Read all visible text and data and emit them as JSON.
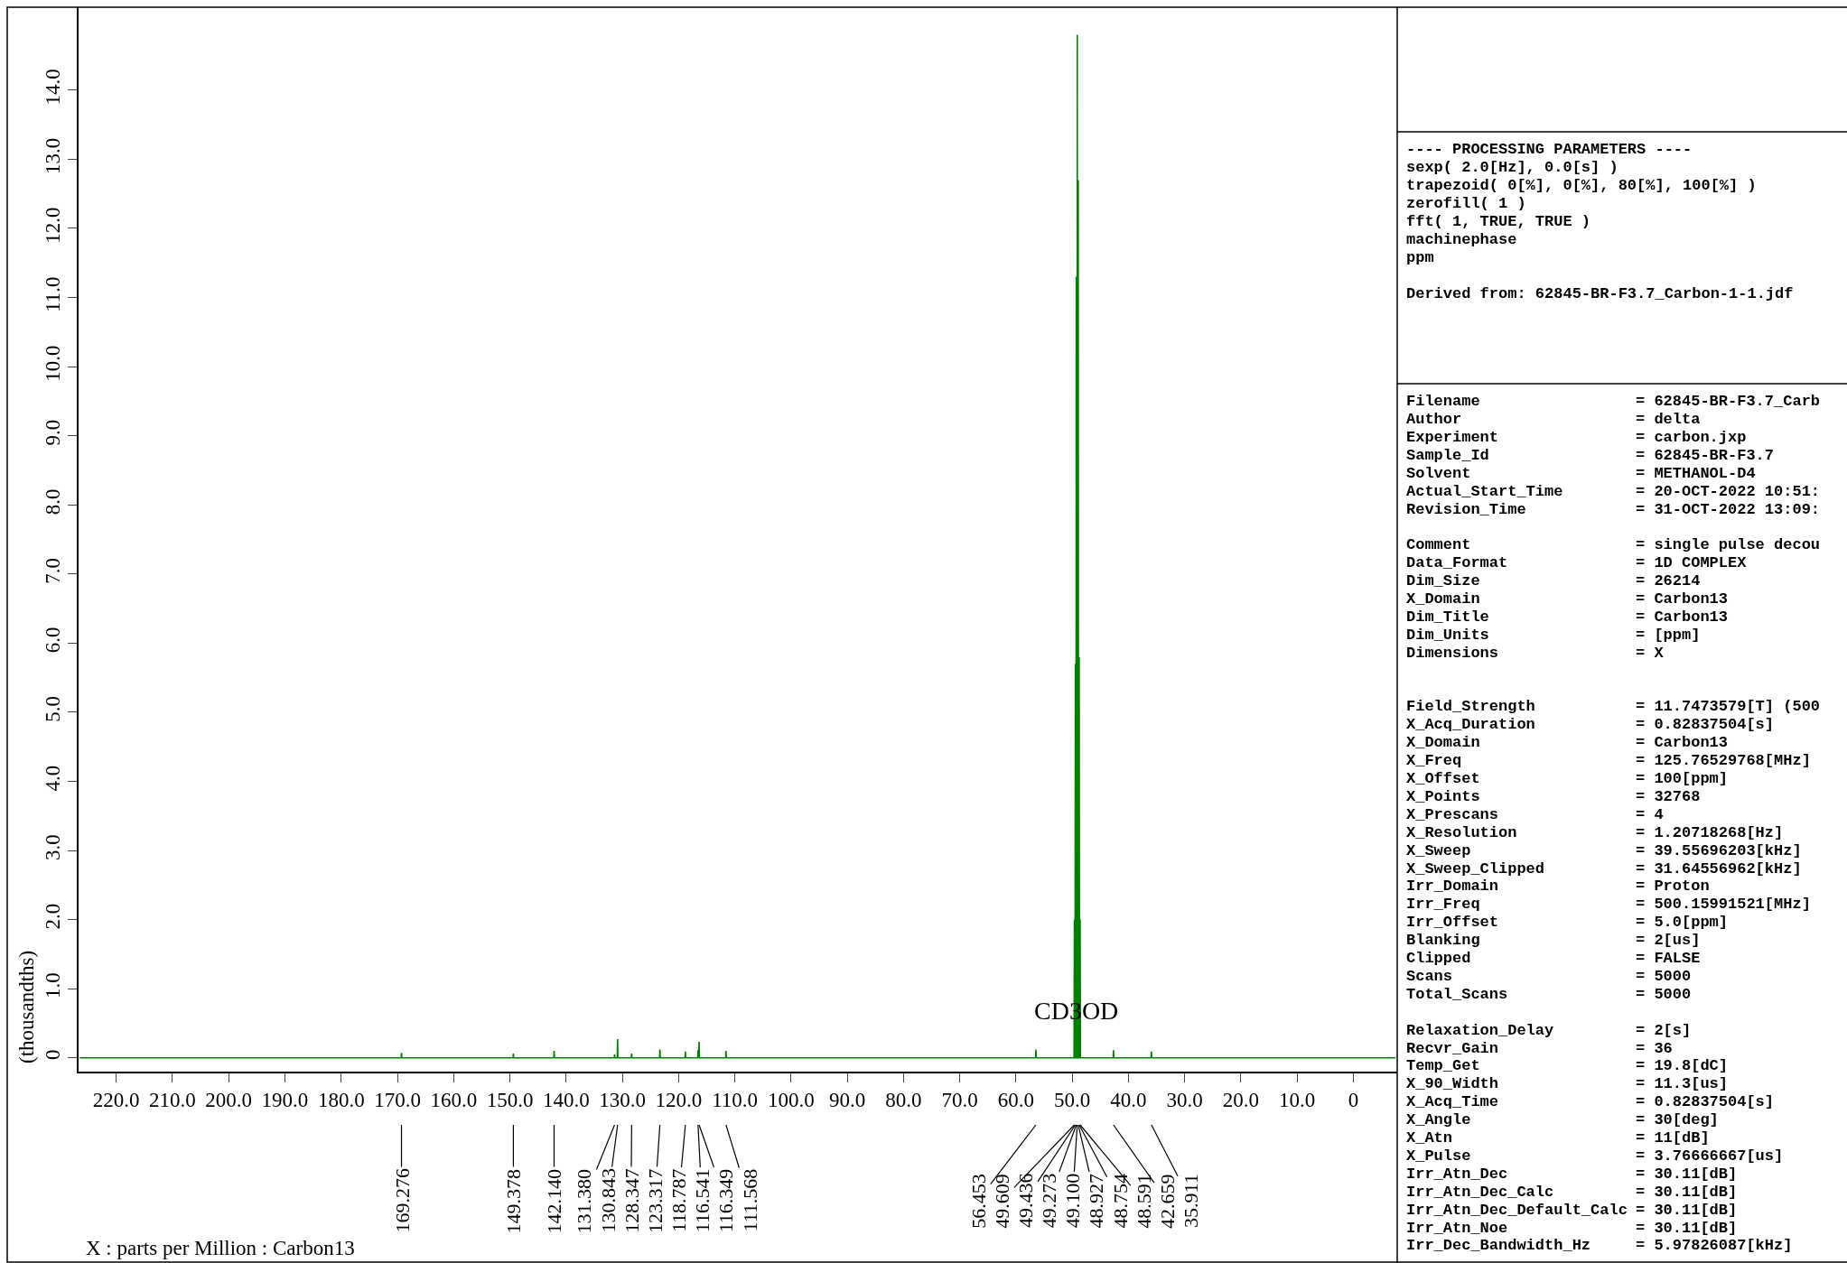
{
  "chart_data": {
    "type": "line",
    "ylabel": "(thousandths)",
    "xlim": [
      226.7,
      -7.8
    ],
    "ylim": [
      -0.2,
      15.2
    ],
    "xticks": [
      {
        "value": 220,
        "label": "220.0"
      },
      {
        "value": 210,
        "label": "210.0"
      },
      {
        "value": 200,
        "label": "200.0"
      },
      {
        "value": 190,
        "label": "190.0"
      },
      {
        "value": 180,
        "label": "180.0"
      },
      {
        "value": 170,
        "label": "170.0"
      },
      {
        "value": 160,
        "label": "160.0"
      },
      {
        "value": 150,
        "label": "150.0"
      },
      {
        "value": 140,
        "label": "140.0"
      },
      {
        "value": 130,
        "label": "130.0"
      },
      {
        "value": 120,
        "label": "120.0"
      },
      {
        "value": 110,
        "label": "110.0"
      },
      {
        "value": 100,
        "label": "100.0"
      },
      {
        "value": 90,
        "label": "90.0"
      },
      {
        "value": 80,
        "label": "80.0"
      },
      {
        "value": 70,
        "label": "70.0"
      },
      {
        "value": 60,
        "label": "60.0"
      },
      {
        "value": 50,
        "label": "50.0"
      },
      {
        "value": 40,
        "label": "40.0"
      },
      {
        "value": 30,
        "label": "30.0"
      },
      {
        "value": 20,
        "label": "20.0"
      },
      {
        "value": 10,
        "label": "10.0"
      },
      0
    ],
    "yticks": [
      0,
      {
        "value": 1,
        "label": "1.0"
      },
      {
        "value": 2,
        "label": "2.0"
      },
      {
        "value": 3,
        "label": "3.0"
      },
      {
        "value": 4,
        "label": "4.0"
      },
      {
        "value": 5,
        "label": "5.0"
      },
      {
        "value": 6,
        "label": "6.0"
      },
      {
        "value": 7,
        "label": "7.0"
      },
      {
        "value": 8,
        "label": "8.0"
      },
      {
        "value": 9,
        "label": "9.0"
      },
      {
        "value": 10,
        "label": "10.0"
      },
      {
        "value": 11,
        "label": "11.0"
      },
      {
        "value": 12,
        "label": "12.0"
      },
      {
        "value": 13,
        "label": "13.0"
      },
      {
        "value": 14,
        "label": "14.0"
      }
    ],
    "marker": "none",
    "line_style": "solid",
    "x": [
      226.5,
      169.336,
      169.276,
      169.216,
      149.438,
      149.378,
      149.318,
      142.2,
      142.14,
      142.08,
      131.44,
      131.38,
      131.32,
      130.903,
      130.843,
      130.783,
      128.407,
      128.347,
      128.287,
      123.377,
      123.317,
      123.257,
      118.847,
      118.787,
      118.727,
      116.601,
      116.541,
      116.481,
      116.409,
      116.349,
      116.289,
      111.628,
      111.568,
      111.508,
      56.513,
      56.453,
      56.393,
      49.669,
      49.609,
      49.549,
      49.496,
      49.436,
      49.376,
      49.333,
      49.273,
      49.213,
      49.16,
      49.1,
      49.04,
      48.987,
      48.927,
      48.867,
      48.814,
      48.754,
      48.694,
      48.651,
      48.591,
      48.531,
      42.719,
      42.659,
      42.599,
      35.971,
      35.911,
      35.851,
      -7.5
    ],
    "series": [
      {
        "color": "#008000",
        "values": [
          0,
          0,
          0.07,
          0,
          0,
          0.06,
          0,
          0,
          0.1,
          0,
          0,
          0.05,
          0,
          0,
          0.27,
          0,
          0,
          0.06,
          0,
          0,
          0.12,
          0,
          0,
          0.09,
          0,
          0,
          0.11,
          0,
          0,
          0.23,
          0,
          0,
          0.1,
          0,
          0,
          0.12,
          0,
          0,
          2.0,
          0,
          0,
          5.7,
          0,
          0,
          11.3,
          0,
          0,
          14.8,
          0,
          0,
          12.7,
          0,
          0,
          5.8,
          0,
          0,
          2.0,
          0,
          0,
          0.11,
          0,
          0,
          0.09,
          0,
          0
        ]
      }
    ],
    "annotations": [
      {
        "text": "CD3OD",
        "x": 49.3,
        "y": 0.68
      },
      "169.276",
      "149.378",
      "142.140",
      "131.380",
      "130.843",
      "128.347",
      "123.317",
      "118.787",
      "116.541",
      "116.349",
      "111.568",
      "56.453",
      "49.609",
      "49.436",
      "49.273",
      "49.100",
      "48.927",
      "48.754",
      "48.591",
      "42.659",
      "35.911",
      "---- PROCESSING PARAMETERS ----",
      "sexp( 2.0[Hz], 0.0[s] )",
      "trapezoid( 0[%], 0[%], 80[%], 100[%] )",
      "zerofill( 1 )",
      "fft( 1, TRUE, TRUE )",
      "machinephase",
      "ppm",
      "Derived from: 62845-BR-F3.7_Carbon-1-1.jdf",
      "Filename = 62845-BR-F3.7_Carb",
      "Author = delta",
      "Experiment = carbon.jxp",
      "Sample_Id = 62845-BR-F3.7",
      "Solvent = METHANOL-D4",
      "Actual_Start_Time = 20-OCT-2022 10:51:",
      "Revision_Time = 31-OCT-2022 13:09:",
      "Comment = single pulse decou",
      "Data_Format = 1D COMPLEX",
      "Dim_Size = 26214",
      "X_Domain = Carbon13",
      "Dim_Title = Carbon13",
      "Dim_Units = [ppm]",
      "Dimensions = X",
      "Field_Strength = 11.7473579[T] (500",
      "X_Acq_Duration = 0.82837504[s]",
      "X_Domain = Carbon13",
      "X_Freq = 125.76529768[MHz]",
      "X_Offset = 100[ppm]",
      "X_Points = 32768",
      "X_Prescans = 4",
      "X_Resolution = 1.20718268[Hz]",
      "X_Sweep = 39.55696203[kHz]",
      "X_Sweep_Clipped = 31.64556962[kHz]",
      "Irr_Domain = Proton",
      "Irr_Freq = 500.15991521[MHz]",
      "Irr_Offset = 5.0[ppm]",
      "Blanking = 2[us]",
      "Clipped = FALSE",
      "Scans = 5000",
      "Total_Scans = 5000",
      "Relaxation_Delay = 2[s]",
      "Recvr_Gain = 36",
      "Temp_Get = 19.8[dC]",
      "X_90_Width = 11.3[us]",
      "X_Acq_Time = 0.82837504[s]",
      "X_Angle = 30[deg]",
      "X_Atn = 11[dB]",
      "X_Pulse = 3.76666667[us]",
      "Irr_Atn_Dec = 30.11[dB]",
      "Irr_Atn_Dec_Calc = 30.11[dB]",
      "Irr_Atn_Dec_Default_Calc = 30.11[dB]",
      "Irr_Atn_Noe = 30.11[dB]",
      "Irr_Dec_Bandwidth_Hz = 5.97826087[kHz]",
      "X : parts per Million : Carbon13"
    ]
  }
}
